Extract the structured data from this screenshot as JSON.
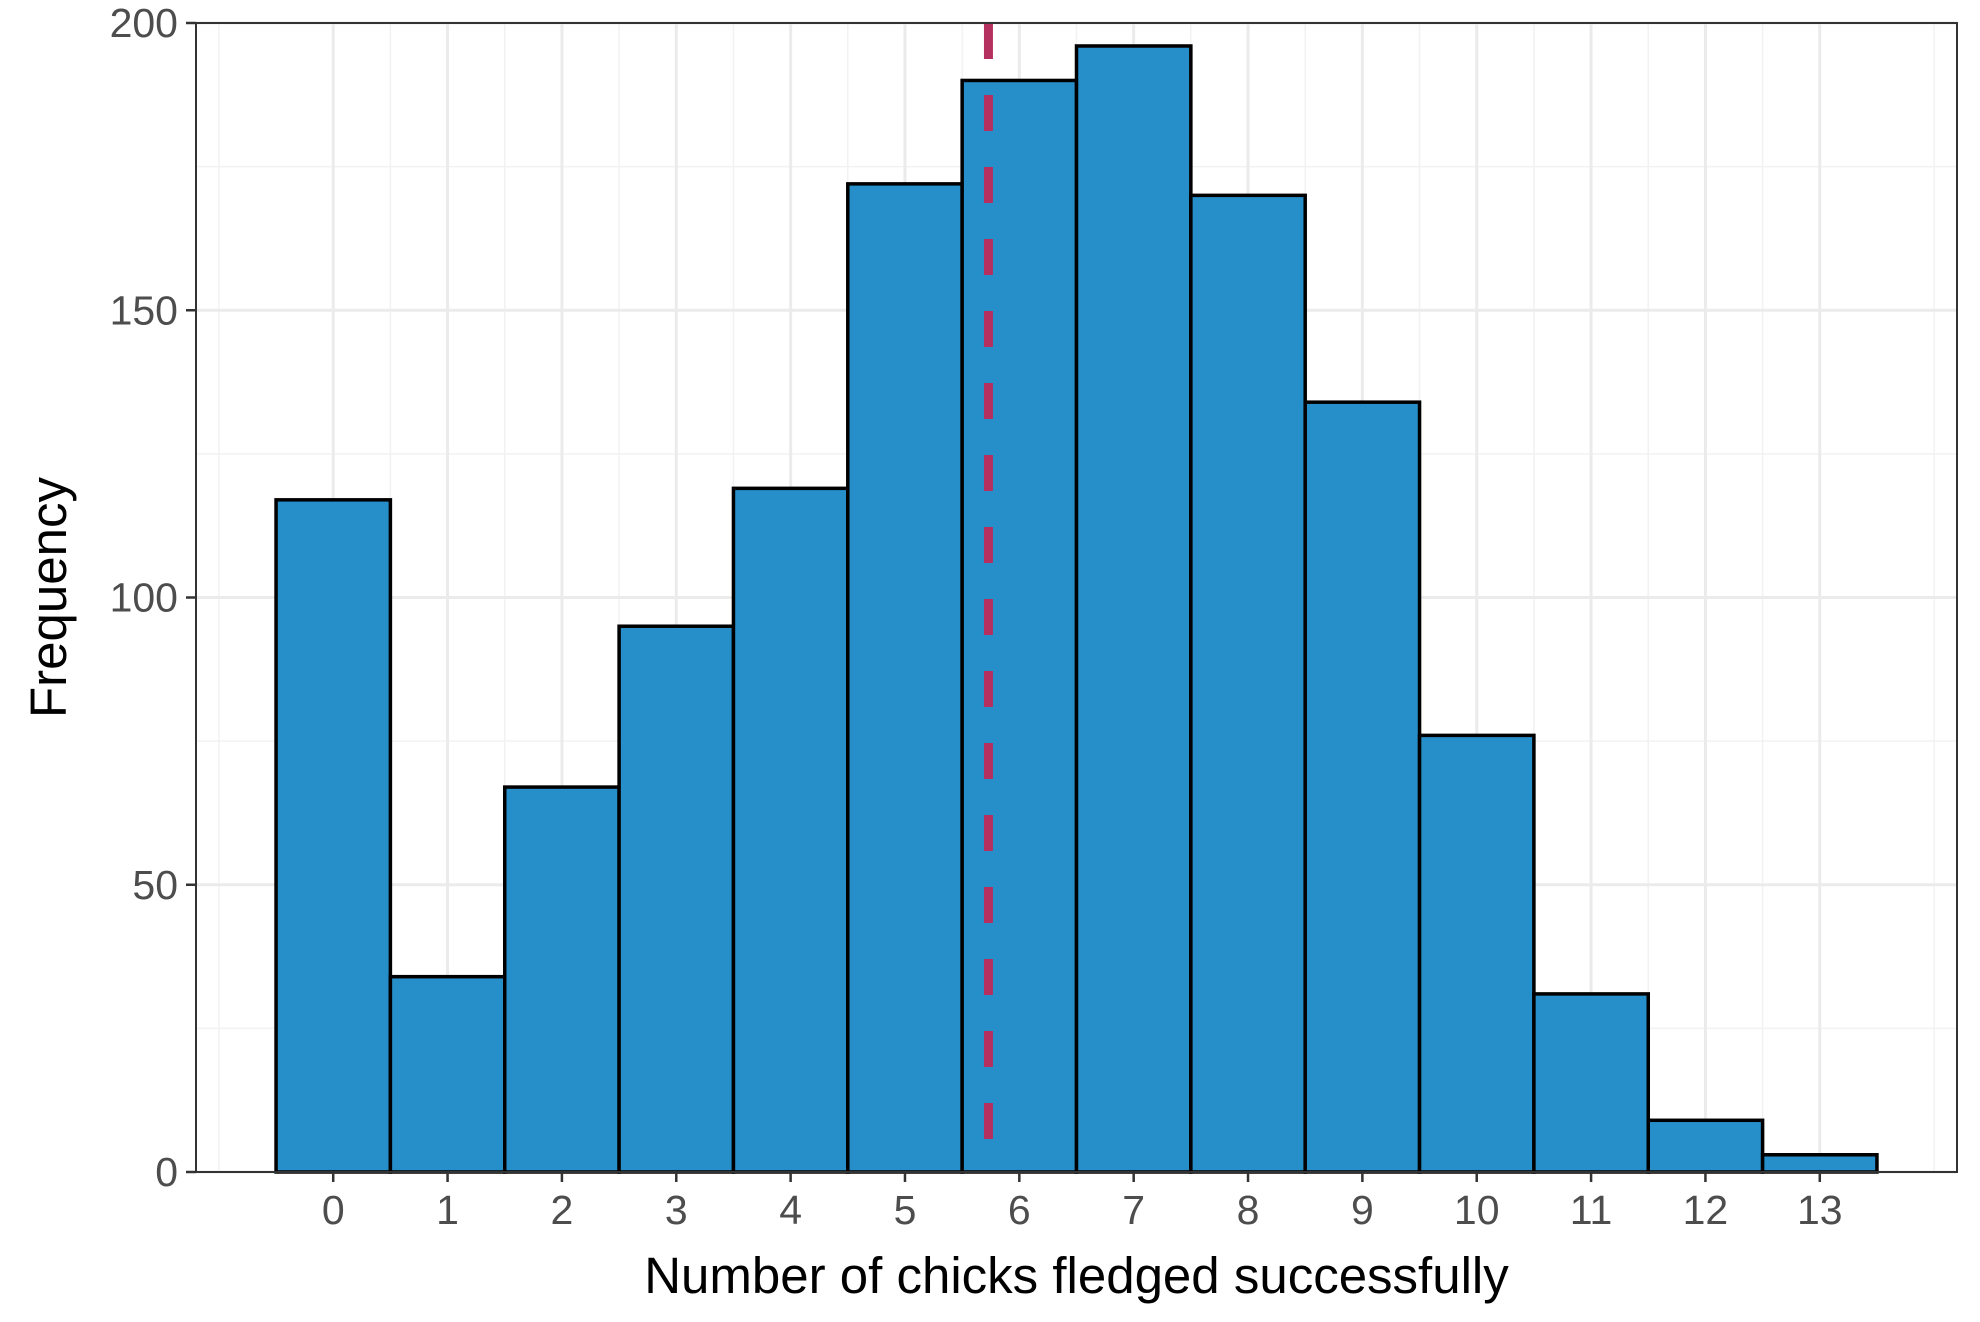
{
  "chart_data": {
    "type": "bar",
    "xlabel": "Number of chicks fledged successfully",
    "ylabel": "Frequency",
    "categories": [
      0,
      1,
      2,
      3,
      4,
      5,
      6,
      7,
      8,
      9,
      10,
      11,
      12,
      13
    ],
    "values": [
      117,
      34,
      67,
      95,
      119,
      172,
      190,
      196,
      170,
      134,
      76,
      31,
      9,
      3
    ],
    "xlim": [
      -1.2,
      14.2
    ],
    "ylim": [
      0,
      200
    ],
    "yticks": [
      0,
      50,
      100,
      150,
      200
    ],
    "xticks": [
      0,
      1,
      2,
      3,
      4,
      5,
      6,
      7,
      8,
      9,
      10,
      11,
      12,
      13
    ],
    "reference_line": {
      "x": 5.73,
      "style": "dashed",
      "color": "#b5305f"
    },
    "bar_fill": "#268fc9",
    "bar_stroke": "#000000",
    "grid": true,
    "theme": "bw"
  }
}
